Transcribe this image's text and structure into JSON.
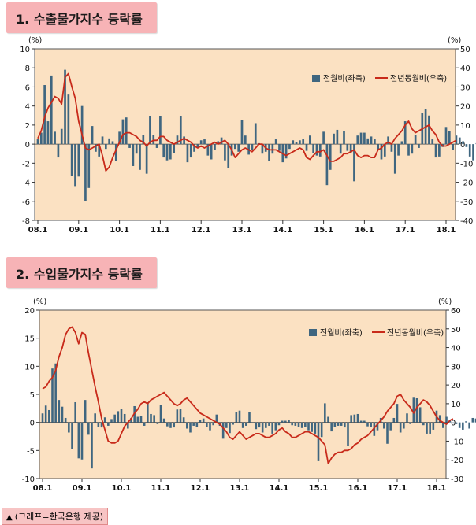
{
  "titles": [
    "1. 수출물가지수 등락률",
    "2. 수입물가지수 등락률"
  ],
  "source_caption": "(그래프=한국은행 제공)",
  "colors": {
    "bar": "#3f6680",
    "line": "#c82a1a",
    "plot_bg": "#fbe1c2",
    "title_bg": "#f7b3b6"
  },
  "chart_data": [
    {
      "type": "bar",
      "x_tick_labels": [
        "08.1",
        "09.1",
        "10.1",
        "11.1",
        "12.1",
        "13.1",
        "14.1",
        "15.1",
        "16.1",
        "17.1",
        "18.1"
      ],
      "left_unit": "(%)",
      "right_unit": "(%)",
      "yleft_ticks": [
        10,
        8,
        6,
        4,
        2,
        0,
        -2,
        -4,
        -6,
        -8
      ],
      "yright_ticks": [
        50,
        40,
        30,
        20,
        10,
        0,
        -10,
        -20,
        -30,
        -40
      ],
      "yleft_lim": [
        -8,
        10
      ],
      "yright_lim": [
        -40,
        50
      ],
      "legend_position": "top-right",
      "series": [
        {
          "name": "전월비(좌축)",
          "axis": "left",
          "kind": "bar",
          "values": [
            0.5,
            1.2,
            6.2,
            2.4,
            7.2,
            1.3,
            -1.4,
            1.6,
            7.8,
            5.2,
            -3.3,
            -4.4,
            -3.4,
            4.0,
            -6.0,
            -4.6,
            1.9,
            -0.8,
            -1.3,
            0.8,
            -0.5,
            0.6,
            0.3,
            -1.8,
            1.3,
            2.6,
            2.8,
            -0.4,
            -2.3,
            -1.0,
            -2.7,
            1.0,
            -3.1,
            2.9,
            1.0,
            -0.4,
            2.9,
            -1.4,
            -1.7,
            -1.6,
            -0.9,
            0.9,
            2.9,
            0.8,
            -1.9,
            -1.4,
            -0.8,
            -0.4,
            0.4,
            0.5,
            -1.2,
            -1.6,
            -0.6,
            0.3,
            0.7,
            -1.7,
            -2.5,
            -1.2,
            -0.5,
            -0.8,
            2.5,
            0.9,
            -1.1,
            -0.6,
            2.2,
            0.1,
            -1.0,
            -0.8,
            -1.8,
            -1.0,
            0.5,
            -0.7,
            -1.9,
            -1.5,
            -0.5,
            0.4,
            0.2,
            0.4,
            0.5,
            -0.7,
            0.9,
            -0.9,
            -1.2,
            -1.3,
            1.3,
            -4.3,
            -2.7,
            1.1,
            1.5,
            -1.0,
            1.4,
            -0.7,
            -0.9,
            -3.9,
            0.9,
            1.2,
            1.2,
            0.6,
            0.8,
            0.5,
            -0.6,
            -1.6,
            -1.3,
            0.8,
            -0.8,
            -3.1,
            -1.2,
            0.3,
            2.4,
            -1.2,
            -1.0,
            1.0,
            -0.4,
            3.3,
            3.7,
            3.0,
            0.5,
            -1.4,
            -1.3,
            -0.3,
            1.8,
            1.4,
            -0.6,
            0.9,
            0.7,
            0.3,
            -0.3,
            -1.3,
            -1.7,
            0.1,
            -1.6,
            1.0,
            -1.1
          ]
        },
        {
          "name": "전년동월비(우축)",
          "axis": "right",
          "kind": "line",
          "values": [
            3,
            7,
            14,
            19,
            22,
            25,
            24,
            21,
            35,
            37,
            30,
            24,
            12,
            5,
            -2,
            -3,
            -2,
            -1,
            0,
            -6,
            -14,
            -12,
            -7,
            -3,
            1,
            5,
            6,
            6,
            5,
            4,
            2,
            1,
            -1,
            1,
            2,
            2,
            4,
            4,
            2,
            1,
            0,
            1,
            2,
            3,
            2,
            1,
            -1,
            -2,
            -1,
            -2,
            -1,
            0,
            1,
            0,
            1,
            2,
            0,
            -3,
            -7,
            -5,
            -3,
            -2,
            -3,
            -4,
            -2,
            0,
            0,
            -2,
            -3,
            -3,
            -3,
            -4,
            -5,
            -6,
            -5,
            -4,
            -3,
            -2,
            -3,
            -7,
            -8,
            -6,
            -4,
            -4,
            -3,
            -6,
            -9,
            -9,
            -8,
            -7,
            -5,
            -5,
            -4,
            -3,
            -6,
            -7,
            -6,
            -6,
            -7,
            -7,
            -3,
            -2,
            0,
            1,
            0,
            3,
            5,
            7,
            10,
            12,
            8,
            6,
            7,
            8,
            9,
            10,
            7,
            5,
            1,
            -1,
            -1,
            0,
            1,
            2
          ]
        }
      ],
      "legend": [
        "전월비(좌축)",
        "전년동월비(우축)"
      ]
    },
    {
      "type": "bar",
      "x_tick_labels": [
        "08.1",
        "09.1",
        "10.1",
        "11.1",
        "12.1",
        "13.1",
        "14.1",
        "15.1",
        "16.1",
        "17.1",
        "18.1"
      ],
      "left_unit": "(%)",
      "right_unit": "(%)",
      "yleft_ticks": [
        20,
        15,
        10,
        5,
        0,
        -5,
        -10
      ],
      "yright_ticks": [
        60,
        50,
        40,
        30,
        20,
        10,
        0,
        -10,
        -20,
        -30
      ],
      "yleft_lim": [
        -10,
        20
      ],
      "yright_lim": [
        -30,
        60
      ],
      "legend_position": "top-right",
      "series": [
        {
          "name": "전월비(좌축)",
          "axis": "left",
          "kind": "bar",
          "values": [
            1.6,
            3.0,
            2.2,
            9.6,
            10.5,
            4.0,
            2.8,
            0.8,
            -1.8,
            -4.7,
            3.6,
            -6.4,
            -6.6,
            4.0,
            -2.2,
            -8.2,
            1.6,
            -0.8,
            -0.9,
            0.9,
            -0.6,
            0.6,
            1.4,
            2.0,
            2.4,
            1.5,
            -1.1,
            0.8,
            2.9,
            1.0,
            1.2,
            -0.6,
            3.6,
            1.5,
            1.3,
            -0.3,
            3.1,
            0.7,
            -0.7,
            -1.0,
            -0.9,
            2.3,
            2.4,
            0.9,
            -1.1,
            -1.8,
            -0.6,
            -0.8,
            0.4,
            0.7,
            -0.8,
            -1.4,
            -0.5,
            1.4,
            -0.6,
            -2.9,
            -1.0,
            -1.9,
            -0.4,
            1.9,
            2.1,
            -1.0,
            -0.6,
            1.8,
            -0.1,
            -1.2,
            -0.9,
            -1.8,
            -1.0,
            -0.6,
            -2.0,
            -1.4,
            -0.5,
            0.3,
            0.3,
            0.5,
            -0.5,
            -0.6,
            -0.8,
            -1.0,
            -0.8,
            -1.4,
            -1.7,
            -2.0,
            -6.9,
            -2.6,
            3.4,
            1.0,
            -1.6,
            -0.8,
            -0.6,
            -0.6,
            -0.9,
            -4.2,
            1.3,
            1.4,
            1.5,
            0.3,
            0.3,
            -0.7,
            -0.8,
            -2.4,
            -1.4,
            0.8,
            -1.1,
            -3.8,
            -1.4,
            0.8,
            3.3,
            -1.8,
            -1.1,
            1.6,
            -0.3,
            4.4,
            4.3,
            2.7,
            -0.5,
            -2.0,
            -2.0,
            -1.3,
            2.1,
            1.3,
            -1.0,
            1.0,
            0.3,
            -0.2,
            -0.3,
            -1.0,
            -1.3,
            0.2,
            -1.1,
            0.8,
            0.7
          ]
        },
        {
          "name": "전년동월비(우축)",
          "axis": "right",
          "kind": "line",
          "values": [
            18,
            19,
            22,
            24,
            28,
            35,
            40,
            47,
            50,
            51,
            48,
            42,
            48,
            47,
            37,
            28,
            19,
            11,
            2,
            -4,
            -10,
            -11,
            -11,
            -10,
            -6,
            -2,
            0,
            2,
            5,
            7,
            10,
            11,
            10,
            12,
            13,
            14,
            15,
            16,
            14,
            12,
            10,
            9,
            10,
            12,
            13,
            11,
            9,
            7,
            5,
            4,
            3,
            2,
            1,
            0,
            -1,
            -3,
            -5,
            -8,
            -9,
            -7,
            -5,
            -7,
            -9,
            -8,
            -7,
            -6,
            -6,
            -7,
            -8,
            -8,
            -7,
            -6,
            -4,
            -3,
            -5,
            -6,
            -8,
            -8,
            -7,
            -6,
            -5,
            -5,
            -6,
            -7,
            -8,
            -10,
            -12,
            -22,
            -19,
            -17,
            -16,
            -16,
            -15,
            -15,
            -14,
            -12,
            -11,
            -9,
            -8,
            -7,
            -5,
            -3,
            -1,
            1,
            3,
            6,
            8,
            10,
            14,
            15,
            12,
            10,
            8,
            5,
            8,
            10,
            12,
            11,
            9,
            6,
            3,
            1,
            0,
            -1,
            1,
            2
          ]
        }
      ],
      "legend": [
        "전월비(좌축)",
        "전년동월비(우축)"
      ]
    }
  ]
}
